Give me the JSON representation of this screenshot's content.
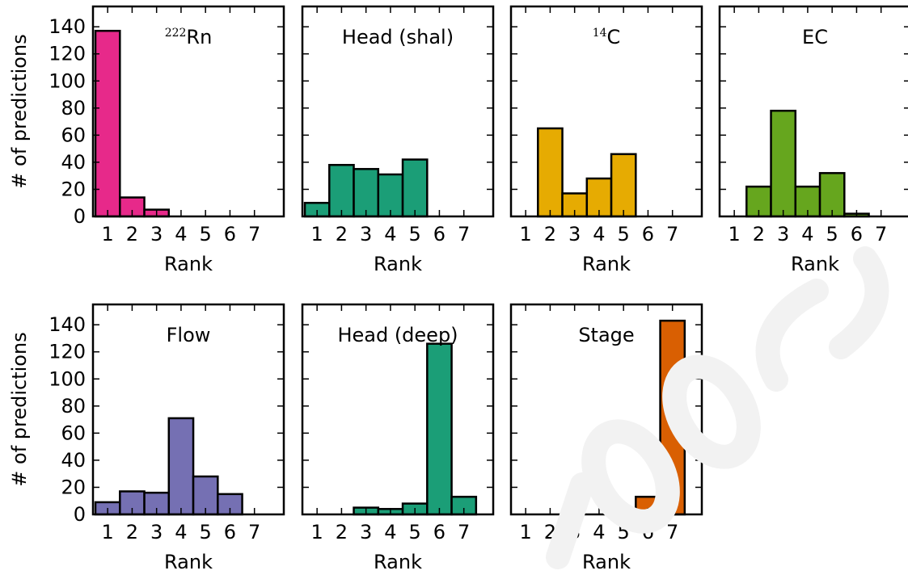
{
  "chart_data": [
    {
      "type": "bar",
      "title": "Rn",
      "title_superscript": "222",
      "color": "#e7298a",
      "categories": [
        "1",
        "2",
        "3",
        "4",
        "5",
        "6",
        "7"
      ],
      "values": [
        137,
        14,
        5,
        0,
        0,
        0,
        0
      ],
      "xlabel": "Rank",
      "ylabel": "# of predictions",
      "ylim": [
        0,
        155
      ],
      "yticks": [
        "0",
        "20",
        "40",
        "60",
        "80",
        "100",
        "120",
        "140"
      ]
    },
    {
      "type": "bar",
      "title": "Head (shal)",
      "color": "#1b9e77",
      "categories": [
        "1",
        "2",
        "3",
        "4",
        "5",
        "6",
        "7"
      ],
      "values": [
        10,
        38,
        35,
        31,
        42,
        0,
        0
      ],
      "xlabel": "Rank",
      "ylim": [
        0,
        155
      ]
    },
    {
      "type": "bar",
      "title": "C",
      "title_superscript": "14",
      "color": "#e6ab02",
      "categories": [
        "1",
        "2",
        "3",
        "4",
        "5",
        "6",
        "7"
      ],
      "values": [
        0,
        65,
        17,
        28,
        46,
        0,
        0
      ],
      "xlabel": "Rank",
      "ylim": [
        0,
        155
      ]
    },
    {
      "type": "bar",
      "title": "EC",
      "color": "#66a61e",
      "categories": [
        "1",
        "2",
        "3",
        "4",
        "5",
        "6",
        "7"
      ],
      "values": [
        0,
        22,
        78,
        22,
        32,
        2,
        0
      ],
      "xlabel": "Rank",
      "ylim": [
        0,
        155
      ]
    },
    {
      "type": "bar",
      "title": "Flow",
      "color": "#7570b3",
      "categories": [
        "1",
        "2",
        "3",
        "4",
        "5",
        "6",
        "7"
      ],
      "values": [
        9,
        17,
        16,
        71,
        28,
        15,
        0
      ],
      "xlabel": "Rank",
      "ylabel": "# of predictions",
      "ylim": [
        0,
        155
      ],
      "yticks": [
        "0",
        "20",
        "40",
        "60",
        "80",
        "100",
        "120",
        "140"
      ]
    },
    {
      "type": "bar",
      "title": "Head (deep)",
      "color": "#1b9e77",
      "categories": [
        "1",
        "2",
        "3",
        "4",
        "5",
        "6",
        "7"
      ],
      "values": [
        0,
        0,
        5,
        4,
        8,
        126,
        13
      ],
      "xlabel": "Rank",
      "ylim": [
        0,
        155
      ]
    },
    {
      "type": "bar",
      "title": "Stage",
      "color": "#d95f02",
      "categories": [
        "1",
        "2",
        "3",
        "4",
        "5",
        "6",
        "7"
      ],
      "values": [
        0,
        0,
        0,
        0,
        0,
        13,
        143
      ],
      "xlabel": "Rank",
      "ylim": [
        0,
        155
      ]
    }
  ]
}
